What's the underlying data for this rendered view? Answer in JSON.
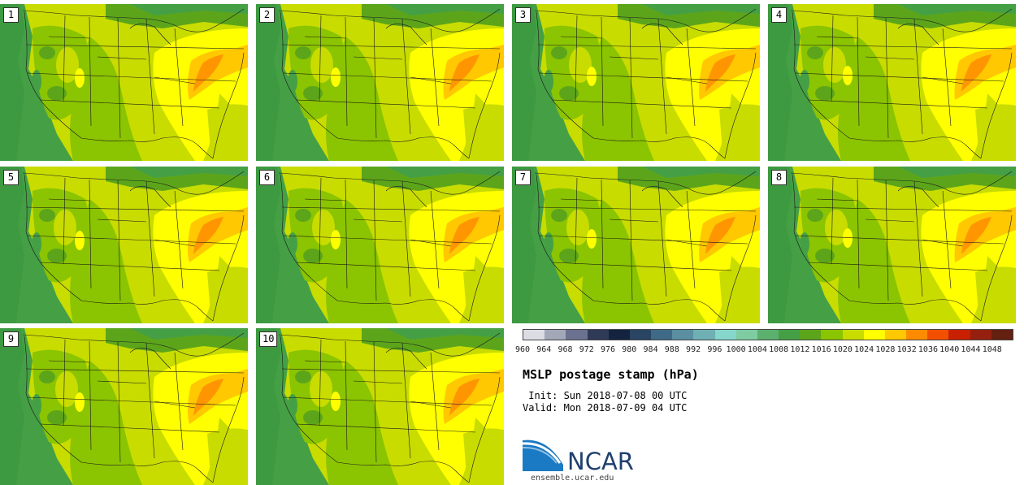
{
  "figure": {
    "title": "MSLP postage stamp (hPa)",
    "init": " Init: Sun 2018-07-08 00 UTC",
    "valid": "Valid: Mon 2018-07-09 04 UTC"
  },
  "members": [
    {
      "label": "1"
    },
    {
      "label": "2"
    },
    {
      "label": "3"
    },
    {
      "label": "4"
    },
    {
      "label": "5"
    },
    {
      "label": "6"
    },
    {
      "label": "7"
    },
    {
      "label": "8"
    },
    {
      "label": "9"
    },
    {
      "label": "10"
    }
  ],
  "colorbar": {
    "ticks": [
      "960",
      "964",
      "968",
      "972",
      "976",
      "980",
      "984",
      "988",
      "992",
      "996",
      "1000",
      "1004",
      "1008",
      "1012",
      "1016",
      "1020",
      "1024",
      "1028",
      "1032",
      "1036",
      "1040",
      "1044",
      "1048"
    ],
    "colors": [
      "#dcdce4",
      "#a3a8b8",
      "#6b7290",
      "#2f3a57",
      "#142340",
      "#294563",
      "#3f6a87",
      "#5a8ea0",
      "#6fb0b4",
      "#86d6cc",
      "#7fcca2",
      "#5cb06e",
      "#45a045",
      "#5ca51b",
      "#8bc400",
      "#c8dc00",
      "#ffff00",
      "#ffc800",
      "#ff8c00",
      "#f25000",
      "#c82000",
      "#962010",
      "#642010"
    ]
  },
  "logo": {
    "name": "NCAR",
    "url": "ensemble.ucar.edu"
  }
}
